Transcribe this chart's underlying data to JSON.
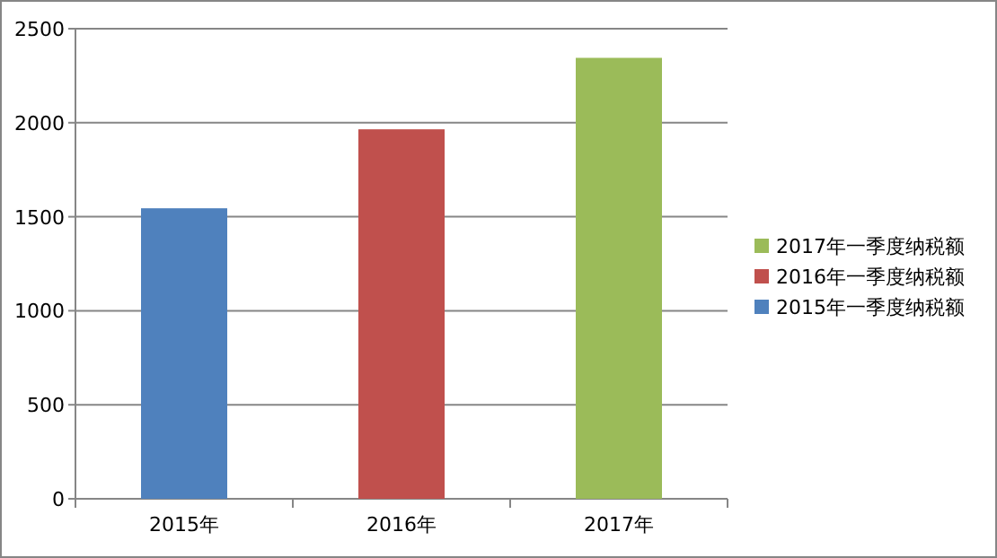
{
  "chart_data": {
    "type": "bar",
    "categories": [
      "2015年",
      "2016年",
      "2017年"
    ],
    "series": [
      {
        "name": "2015年一季度纳税额",
        "color": "#4f81bd",
        "values": [
          1545,
          null,
          null
        ]
      },
      {
        "name": "2016年一季度纳税额",
        "color": "#c0504d",
        "values": [
          null,
          1965,
          null
        ]
      },
      {
        "name": "2017年一季度纳税额",
        "color": "#9bbb59",
        "values": [
          null,
          null,
          2345
        ]
      }
    ],
    "stacked": true,
    "ylim": [
      0,
      2500
    ],
    "yticks": [
      0,
      500,
      1000,
      1500,
      2000,
      2500
    ],
    "grid": "y",
    "legend": "right"
  }
}
